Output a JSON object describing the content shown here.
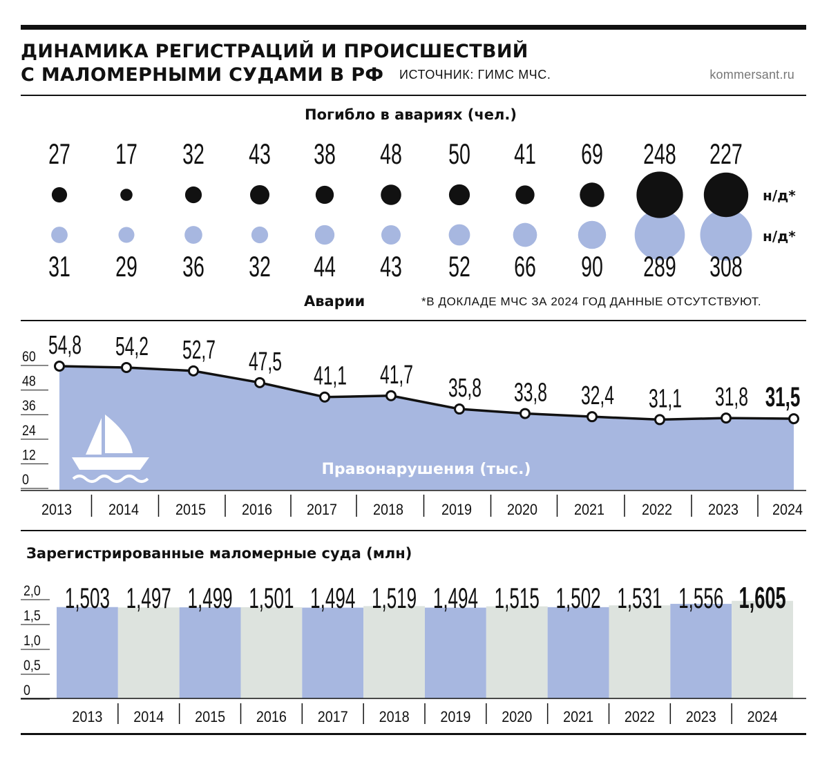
{
  "header": {
    "title_line1": "ДИНАМИКА РЕГИСТРАЦИЙ И ПРОИСШЕСТВИЙ",
    "title_line2": "С МАЛОМЕРНЫМИ СУДАМИ В РФ",
    "source": "ИСТОЧНИК: ГИМС МЧС.",
    "site": "kommersant.ru"
  },
  "colors": {
    "accent_blue": "#a7b7e0",
    "pale_green": "#dde3de",
    "black": "#111111"
  },
  "icons": [
    "sailboat-icon",
    "waves-icon"
  ],
  "chart_data": [
    {
      "type": "scatter",
      "title": "Погибло в авариях (чел.)",
      "series_label": "Аварии",
      "categories": [
        "2013",
        "2014",
        "2015",
        "2016",
        "2017",
        "2018",
        "2019",
        "2020",
        "2021",
        "2022",
        "2023",
        "2024"
      ],
      "series": [
        {
          "name": "Погибло в авариях (чел.)",
          "values": [
            27,
            17,
            32,
            43,
            38,
            48,
            50,
            41,
            69,
            248,
            227,
            null
          ],
          "color": "#111111"
        },
        {
          "name": "Аварии",
          "values": [
            31,
            29,
            36,
            32,
            44,
            43,
            52,
            66,
            90,
            289,
            308,
            null
          ],
          "color": "#a7b7e0"
        }
      ],
      "missing_label": "н/д*",
      "footnote": "*В ДОКЛАДЕ МЧС ЗА 2024 ГОД ДАННЫЕ ОТСУТСТВУЮТ."
    },
    {
      "type": "area",
      "title": "Правонарушения (тыс.)",
      "categories": [
        "2013",
        "2014",
        "2015",
        "2016",
        "2017",
        "2018",
        "2019",
        "2020",
        "2021",
        "2022",
        "2023",
        "2024"
      ],
      "values": [
        54.8,
        54.2,
        52.7,
        47.5,
        41.1,
        41.7,
        35.8,
        33.8,
        32.4,
        31.1,
        31.8,
        31.5
      ],
      "value_labels": [
        "54,8",
        "54,2",
        "52,7",
        "47,5",
        "41,1",
        "41,7",
        "35,8",
        "33,8",
        "32,4",
        "31,1",
        "31,8",
        "31,5"
      ],
      "yticks": [
        "60",
        "48",
        "36",
        "24",
        "12",
        "0"
      ],
      "ylim": [
        0,
        60
      ],
      "grid": false
    },
    {
      "type": "bar",
      "title": "Зарегистрированные маломерные суда (млн)",
      "categories": [
        "2013",
        "2014",
        "2015",
        "2016",
        "2017",
        "2018",
        "2019",
        "2020",
        "2021",
        "2022",
        "2023",
        "2024"
      ],
      "values": [
        1.503,
        1.497,
        1.499,
        1.501,
        1.494,
        1.519,
        1.494,
        1.515,
        1.502,
        1.531,
        1.556,
        1.605
      ],
      "value_labels": [
        "1,503",
        "1,497",
        "1,499",
        "1,501",
        "1,494",
        "1,519",
        "1,494",
        "1,515",
        "1,502",
        "1,531",
        "1,556",
        "1,605"
      ],
      "yticks": [
        "2,0",
        "1,5",
        "1,0",
        "0,5",
        "0"
      ],
      "ylim": [
        0,
        2.0
      ],
      "grid": false
    }
  ]
}
